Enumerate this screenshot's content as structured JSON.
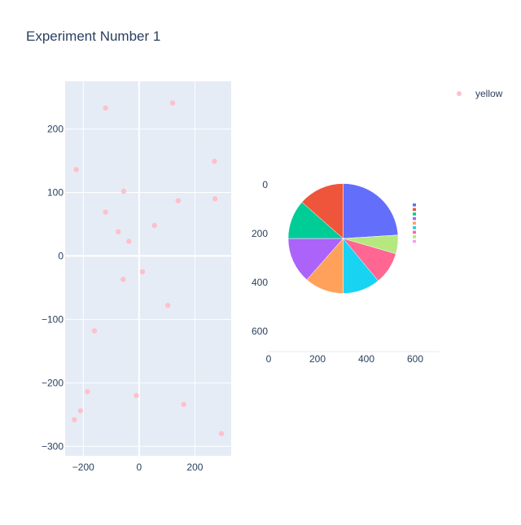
{
  "title": "Experiment Number 1",
  "legend": {
    "entries": [
      {
        "name": "yellow",
        "color": "#ffc0cb",
        "marker": "circle"
      }
    ]
  },
  "colors": {
    "plot_bg": "#e5ecf6",
    "grid": "#ffffff",
    "text": "#2a3f5f",
    "marker": "#ffc0cb"
  },
  "chart_data": [
    {
      "type": "scatter",
      "name": "scatter-panel",
      "xlim": [
        -265,
        330
      ],
      "ylim": [
        -315,
        275
      ],
      "xticks": [
        -200,
        0,
        200
      ],
      "yticks": [
        -300,
        -200,
        -100,
        0,
        100,
        200
      ],
      "xtick_labels": [
        "−200",
        "0",
        "200"
      ],
      "ytick_labels": [
        "−300",
        "−200",
        "−100",
        "0",
        "100",
        "200"
      ],
      "grid": true,
      "series": [
        {
          "name": "yellow",
          "color": "#ffc0cb",
          "points": [
            [
              -120,
              233
            ],
            [
              120,
              241
            ],
            [
              -225,
              136
            ],
            [
              270,
              149
            ],
            [
              -55,
              102
            ],
            [
              140,
              87
            ],
            [
              272,
              90
            ],
            [
              -120,
              69
            ],
            [
              -75,
              38
            ],
            [
              55,
              48
            ],
            [
              -37,
              23
            ],
            [
              12,
              -25
            ],
            [
              -57,
              -37
            ],
            [
              103,
              -78
            ],
            [
              -160,
              -118
            ],
            [
              -185,
              -214
            ],
            [
              -10,
              -220
            ],
            [
              160,
              -234
            ],
            [
              -210,
              -244
            ],
            [
              -232,
              -258
            ],
            [
              295,
              -280
            ]
          ]
        }
      ]
    },
    {
      "type": "pie",
      "name": "pie-panel",
      "xlim": [
        0,
        640
      ],
      "ylim": [
        640,
        0
      ],
      "xticks": [
        0,
        200,
        400,
        600
      ],
      "yticks": [
        0,
        200,
        400,
        600
      ],
      "xtick_labels": [
        "0",
        "200",
        "400",
        "600"
      ],
      "ytick_labels": [
        "0",
        "200",
        "400",
        "600"
      ],
      "pie_center": [
        305,
        220
      ],
      "pie_radius": 225,
      "legend_position": "top-right",
      "slices": [
        {
          "value": 24.0,
          "color": "#636efa"
        },
        {
          "value": 5.5,
          "color": "#b6e880"
        },
        {
          "value": 9.5,
          "color": "#ff6692"
        },
        {
          "value": 11.0,
          "color": "#19d3f3"
        },
        {
          "value": 11.5,
          "color": "#ffa15a"
        },
        {
          "value": 13.5,
          "color": "#ab63fa"
        },
        {
          "value": 11.5,
          "color": "#00cc96"
        },
        {
          "value": 13.5,
          "color": "#ef553b"
        }
      ],
      "legend_swatches": [
        "#636efa",
        "#ef553b",
        "#00cc96",
        "#ab63fa",
        "#ffa15a",
        "#19d3f3",
        "#ff6692",
        "#b6e880",
        "#ff97ff"
      ]
    }
  ]
}
